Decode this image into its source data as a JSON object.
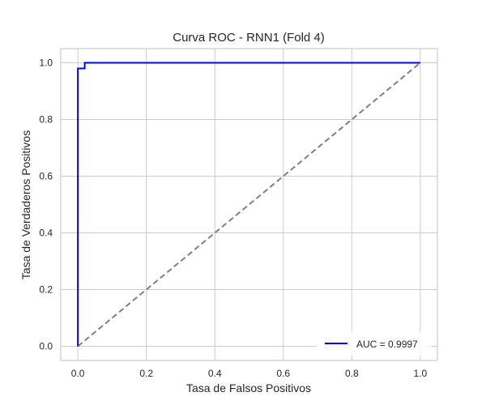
{
  "chart_data": {
    "type": "line",
    "title": "Curva ROC - RNN1 (Fold 4)",
    "xlabel": "Tasa de Falsos Positivos",
    "ylabel": "Tasa de Verdaderos Positivos",
    "xlim": [
      -0.05,
      1.05
    ],
    "ylim": [
      -0.05,
      1.05
    ],
    "x_ticks": [
      "0.0",
      "0.2",
      "0.4",
      "0.6",
      "0.8",
      "1.0"
    ],
    "y_ticks": [
      "0.0",
      "0.2",
      "0.4",
      "0.6",
      "0.8",
      "1.0"
    ],
    "grid": true,
    "legend_position": "lower-right",
    "series": [
      {
        "name": "AUC = 0.9997",
        "color": "#0000ff",
        "style": "solid",
        "x": [
          0.0,
          0.0,
          0.0,
          0.02,
          0.02,
          1.0
        ],
        "y": [
          0.0,
          0.98,
          0.98,
          0.98,
          1.0,
          1.0
        ]
      },
      {
        "color": "#808080",
        "style": "dashed",
        "x": [
          0.0,
          1.0
        ],
        "y": [
          0.0,
          1.0
        ]
      }
    ]
  }
}
